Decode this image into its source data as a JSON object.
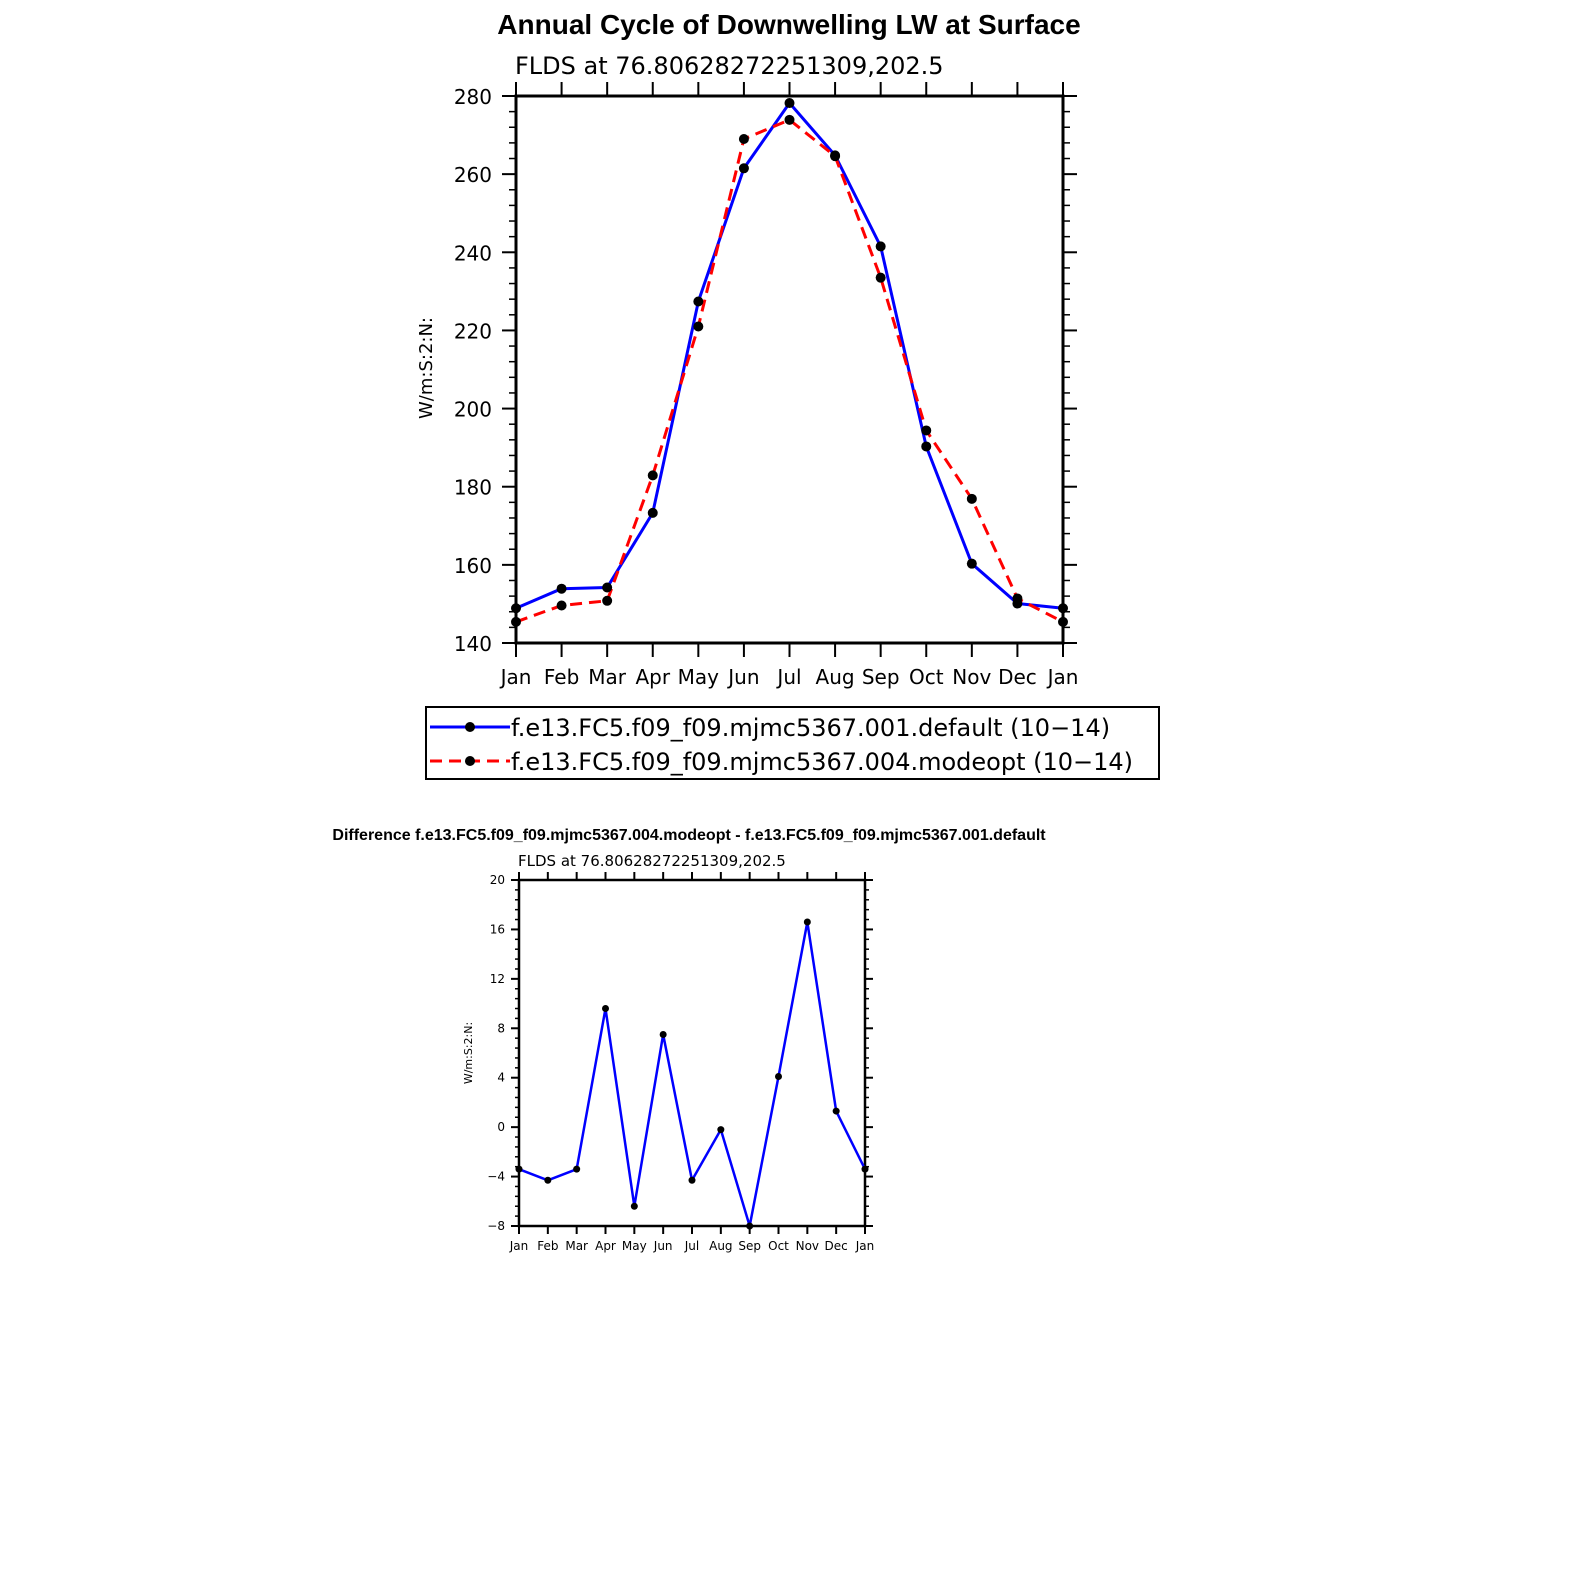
{
  "chart_data": [
    {
      "type": "line",
      "title": "Annual Cycle of Downwelling LW at Surface",
      "subtitle": "FLDS at 76.80628272251309,202.5",
      "xlabel": "",
      "ylabel": "W/m:S:2:N:",
      "ylim": [
        140,
        280
      ],
      "yticks": [
        140,
        160,
        180,
        200,
        220,
        240,
        260,
        280
      ],
      "categories": [
        "Jan",
        "Feb",
        "Mar",
        "Apr",
        "May",
        "Jun",
        "Jul",
        "Aug",
        "Sep",
        "Oct",
        "Nov",
        "Dec",
        "Jan"
      ],
      "legend_position": "bottom",
      "series": [
        {
          "name": "f.e13.FC5.f09_f09.mjmc5367.001.default (10−14)",
          "color": "#0000ff",
          "dash": "solid",
          "values": [
            148.9,
            153.9,
            154.2,
            173.3,
            227.4,
            261.5,
            278.2,
            264.8,
            241.5,
            190.3,
            160.3,
            150.1,
            148.9
          ]
        },
        {
          "name": "f.e13.FC5.f09_f09.mjmc5367.004.modeopt (10−14)",
          "color": "#ff0000",
          "dash": "dashed",
          "values": [
            145.4,
            149.6,
            150.8,
            182.9,
            221.0,
            269.0,
            273.9,
            264.6,
            233.5,
            194.4,
            176.9,
            151.4,
            145.4
          ]
        }
      ]
    },
    {
      "type": "line",
      "title": "Difference f.e13.FC5.f09_f09.mjmc5367.004.modeopt - f.e13.FC5.f09_f09.mjmc5367.001.default",
      "subtitle": "FLDS at 76.80628272251309,202.5",
      "xlabel": "",
      "ylabel": "W/m:S:2:N:",
      "ylim": [
        -8,
        20
      ],
      "yticks": [
        -8,
        -4,
        0,
        4,
        8,
        12,
        16,
        20
      ],
      "ytick_labels": [
        "−8",
        "−4",
        "0",
        "4",
        "8",
        "12",
        "16",
        "20"
      ],
      "categories": [
        "Jan",
        "Feb",
        "Mar",
        "Apr",
        "May",
        "Jun",
        "Jul",
        "Aug",
        "Sep",
        "Oct",
        "Nov",
        "Dec",
        "Jan"
      ],
      "series": [
        {
          "color": "#0000ff",
          "values": [
            -3.4,
            -4.3,
            -3.4,
            9.6,
            -6.4,
            7.5,
            -4.3,
            -0.2,
            -8.0,
            4.1,
            16.6,
            1.3,
            -3.4
          ]
        }
      ]
    }
  ]
}
